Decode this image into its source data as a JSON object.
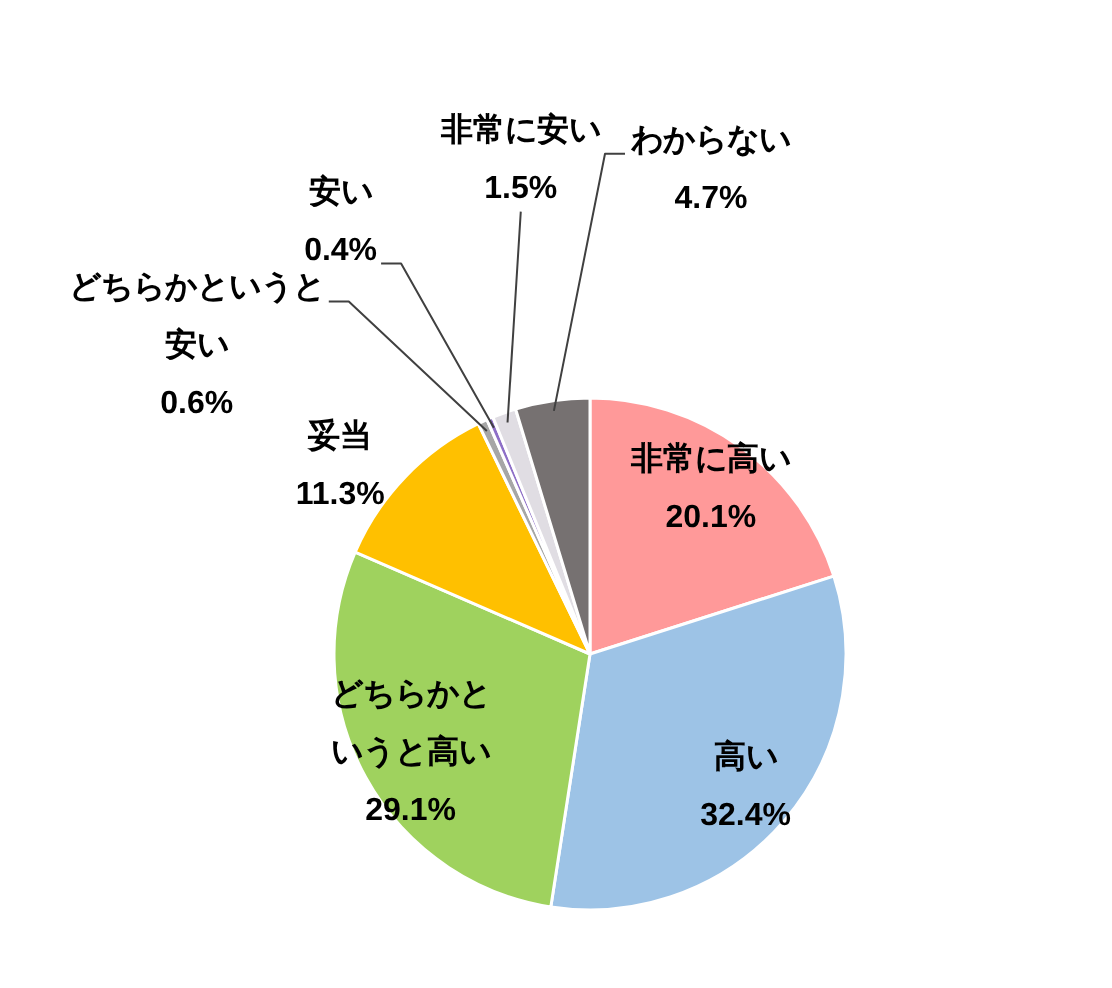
{
  "chart_data": {
    "type": "pie",
    "categories": [
      "非常に高い",
      "高い",
      "どちらかというと高い",
      "妥当",
      "どちらかというと安い",
      "安い",
      "非常に安い",
      "わからない"
    ],
    "values": [
      20.1,
      32.4,
      29.1,
      11.3,
      0.6,
      0.4,
      1.5,
      4.7
    ],
    "colors": [
      "#ff9999",
      "#9dc3e6",
      "#9fd25e",
      "#ffc000",
      "#a6a6a6",
      "#8e6fc7",
      "#e0dde3",
      "#767171"
    ],
    "value_labels": [
      "20.1%",
      "32.4%",
      "29.1%",
      "11.3%",
      "0.6%",
      "0.4%",
      "1.5%",
      "4.7%"
    ]
  }
}
